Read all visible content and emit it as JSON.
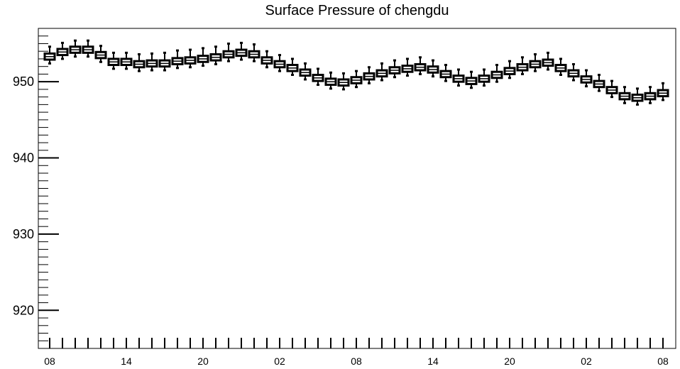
{
  "chart_data": {
    "type": "box",
    "title": "Surface Pressure of chengdu",
    "xlabel": "",
    "ylabel": "",
    "ylim": [
      915,
      957
    ],
    "y_ticks": [
      920,
      930,
      940,
      950
    ],
    "x_tick_labels": [
      "08",
      "14",
      "20",
      "02",
      "08",
      "14",
      "20",
      "02",
      "08"
    ],
    "x_tick_positions": [
      0,
      6,
      12,
      18,
      24,
      30,
      36,
      42,
      48
    ],
    "grid": false,
    "series": [
      {
        "medians": [
          953.3,
          953.9,
          954.2,
          954.2,
          953.5,
          952.6,
          952.6,
          952.3,
          952.4,
          952.4,
          952.7,
          952.8,
          953.0,
          953.2,
          953.6,
          953.8,
          953.6,
          952.8,
          952.3,
          951.8,
          951.2,
          950.5,
          950.0,
          949.9,
          950.2,
          950.7,
          951.1,
          951.5,
          951.7,
          951.9,
          951.6,
          951.0,
          950.4,
          950.1,
          950.4,
          950.9,
          951.4,
          951.9,
          952.3,
          952.5,
          951.8,
          951.1,
          950.3,
          949.7,
          948.9,
          948.1,
          947.9,
          948.1,
          948.5
        ],
        "q1": [
          952.9,
          953.5,
          953.8,
          953.8,
          953.1,
          952.2,
          952.2,
          951.9,
          952.0,
          952.0,
          952.3,
          952.4,
          952.6,
          952.8,
          953.2,
          953.4,
          953.2,
          952.4,
          951.9,
          951.4,
          950.8,
          950.1,
          949.6,
          949.5,
          949.8,
          950.3,
          950.7,
          951.1,
          951.3,
          951.5,
          951.2,
          950.6,
          950.0,
          949.7,
          950.0,
          950.5,
          951.0,
          951.5,
          951.9,
          952.1,
          951.4,
          950.7,
          949.9,
          949.3,
          948.5,
          947.7,
          947.5,
          947.7,
          948.1
        ],
        "q3": [
          953.7,
          954.3,
          954.6,
          954.6,
          953.9,
          953.0,
          953.0,
          952.7,
          952.8,
          952.8,
          953.1,
          953.2,
          953.4,
          953.6,
          954.0,
          954.2,
          954.0,
          953.2,
          952.7,
          952.2,
          951.6,
          950.9,
          950.4,
          950.3,
          950.6,
          951.1,
          951.5,
          951.9,
          952.1,
          952.3,
          952.0,
          951.4,
          950.8,
          950.5,
          950.8,
          951.3,
          951.8,
          952.3,
          952.7,
          952.9,
          952.2,
          951.5,
          950.7,
          950.1,
          949.3,
          948.5,
          948.3,
          948.5,
          948.9
        ],
        "whisker_low": [
          952.4,
          953.0,
          953.3,
          953.3,
          952.6,
          951.7,
          951.7,
          951.4,
          951.5,
          951.5,
          951.8,
          951.9,
          952.1,
          952.3,
          952.7,
          952.9,
          952.7,
          951.9,
          951.4,
          950.9,
          950.3,
          949.6,
          949.1,
          949.0,
          949.3,
          949.8,
          950.2,
          950.6,
          950.8,
          951.0,
          950.7,
          950.1,
          949.5,
          949.2,
          949.5,
          950.0,
          950.5,
          951.0,
          951.4,
          951.6,
          950.9,
          950.2,
          949.4,
          948.8,
          948.0,
          947.2,
          947.0,
          947.2,
          947.6
        ],
        "whisker_high": [
          954.6,
          955.1,
          955.4,
          955.4,
          954.7,
          953.8,
          953.8,
          953.6,
          953.7,
          953.8,
          954.1,
          954.2,
          954.4,
          954.6,
          955.0,
          955.1,
          954.9,
          954.0,
          953.5,
          953.0,
          952.4,
          951.7,
          951.2,
          951.1,
          951.4,
          951.9,
          952.4,
          952.8,
          953.0,
          953.2,
          952.8,
          952.2,
          951.6,
          951.3,
          951.6,
          952.2,
          952.7,
          953.2,
          953.6,
          953.8,
          953.0,
          952.3,
          951.5,
          950.9,
          950.1,
          949.3,
          949.1,
          949.3,
          949.8
        ]
      }
    ]
  }
}
